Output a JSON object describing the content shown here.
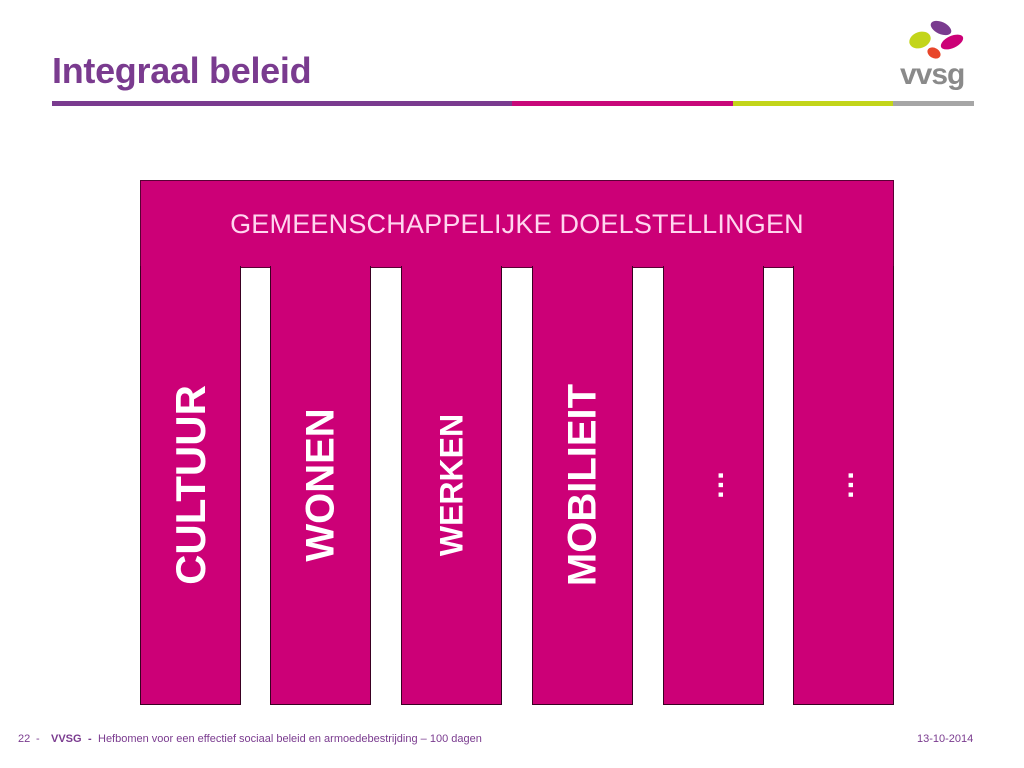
{
  "slide": {
    "title": "Integraal beleid",
    "logo_text": "vvsg",
    "colors": {
      "title": "#7a3b8f",
      "magenta": "#cc0077",
      "lime": "#c3d51a",
      "grey": "#a6a6a6",
      "banner_text": "#ffd6ef"
    }
  },
  "diagram": {
    "banner": "GEMEENSCHAPPELIJKE DOELSTELLINGEN",
    "pillars": [
      {
        "label": "CULTUUR"
      },
      {
        "label": "WONEN"
      },
      {
        "label": "WERKEN"
      },
      {
        "label": "MOBILIEIT"
      },
      {
        "label": "…"
      },
      {
        "label": "…"
      }
    ]
  },
  "footer": {
    "page_number": "22",
    "separator": "-",
    "organization": "VVSG",
    "subtitle": "Hefbomen voor een effectief sociaal beleid en armoedebestrijding – 100 dagen",
    "date": "13-10-2014"
  }
}
